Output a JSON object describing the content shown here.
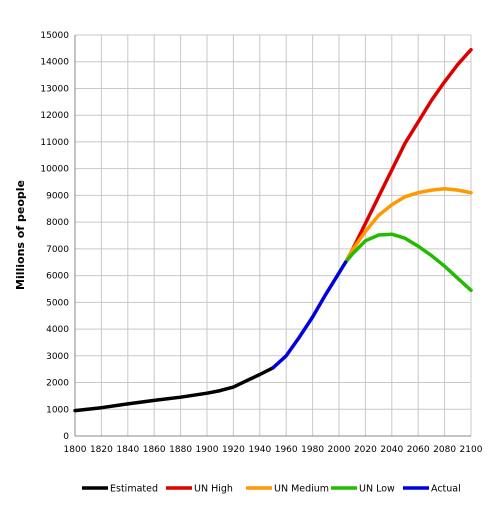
{
  "chart_data": {
    "type": "line",
    "title": "",
    "xlabel": "",
    "ylabel": "Millions of people",
    "xlim": [
      1800,
      2100
    ],
    "ylim": [
      0,
      15000
    ],
    "x_ticks": [
      1800,
      1820,
      1840,
      1860,
      1880,
      1900,
      1920,
      1940,
      1960,
      1980,
      2000,
      2020,
      2040,
      2060,
      2080,
      2100
    ],
    "y_ticks": [
      0,
      1000,
      2000,
      3000,
      4000,
      5000,
      6000,
      7000,
      8000,
      9000,
      10000,
      11000,
      12000,
      13000,
      14000,
      15000
    ],
    "grid": true,
    "legend_position": "bottom",
    "series": [
      {
        "name": "Estimated",
        "color": "#000000",
        "points": [
          [
            1800,
            950
          ],
          [
            1820,
            1060
          ],
          [
            1840,
            1200
          ],
          [
            1860,
            1330
          ],
          [
            1880,
            1450
          ],
          [
            1900,
            1600
          ],
          [
            1910,
            1700
          ],
          [
            1920,
            1830
          ],
          [
            1930,
            2070
          ],
          [
            1940,
            2300
          ],
          [
            1950,
            2550
          ]
        ]
      },
      {
        "name": "UN High",
        "color": "#dd0000",
        "points": [
          [
            2005,
            6500
          ],
          [
            2010,
            6950
          ],
          [
            2020,
            7950
          ],
          [
            2030,
            8950
          ],
          [
            2040,
            9950
          ],
          [
            2050,
            10950
          ],
          [
            2060,
            11750
          ],
          [
            2070,
            12550
          ],
          [
            2080,
            13250
          ],
          [
            2090,
            13900
          ],
          [
            2100,
            14450
          ]
        ]
      },
      {
        "name": "UN Medium",
        "color": "#ff9900",
        "points": [
          [
            2005,
            6500
          ],
          [
            2010,
            6950
          ],
          [
            2020,
            7650
          ],
          [
            2030,
            8250
          ],
          [
            2040,
            8650
          ],
          [
            2050,
            8950
          ],
          [
            2060,
            9100
          ],
          [
            2070,
            9200
          ],
          [
            2080,
            9250
          ],
          [
            2090,
            9200
          ],
          [
            2100,
            9100
          ]
        ]
      },
      {
        "name": "UN Low",
        "color": "#22bb00",
        "points": [
          [
            2005,
            6500
          ],
          [
            2010,
            6800
          ],
          [
            2020,
            7300
          ],
          [
            2030,
            7520
          ],
          [
            2040,
            7550
          ],
          [
            2050,
            7400
          ],
          [
            2060,
            7100
          ],
          [
            2070,
            6750
          ],
          [
            2080,
            6350
          ],
          [
            2090,
            5900
          ],
          [
            2100,
            5450
          ]
        ]
      },
      {
        "name": "Actual",
        "color": "#0000dd",
        "points": [
          [
            1950,
            2550
          ],
          [
            1960,
            3000
          ],
          [
            1970,
            3700
          ],
          [
            1980,
            4450
          ],
          [
            1990,
            5300
          ],
          [
            2000,
            6100
          ],
          [
            2005,
            6500
          ]
        ]
      }
    ]
  }
}
